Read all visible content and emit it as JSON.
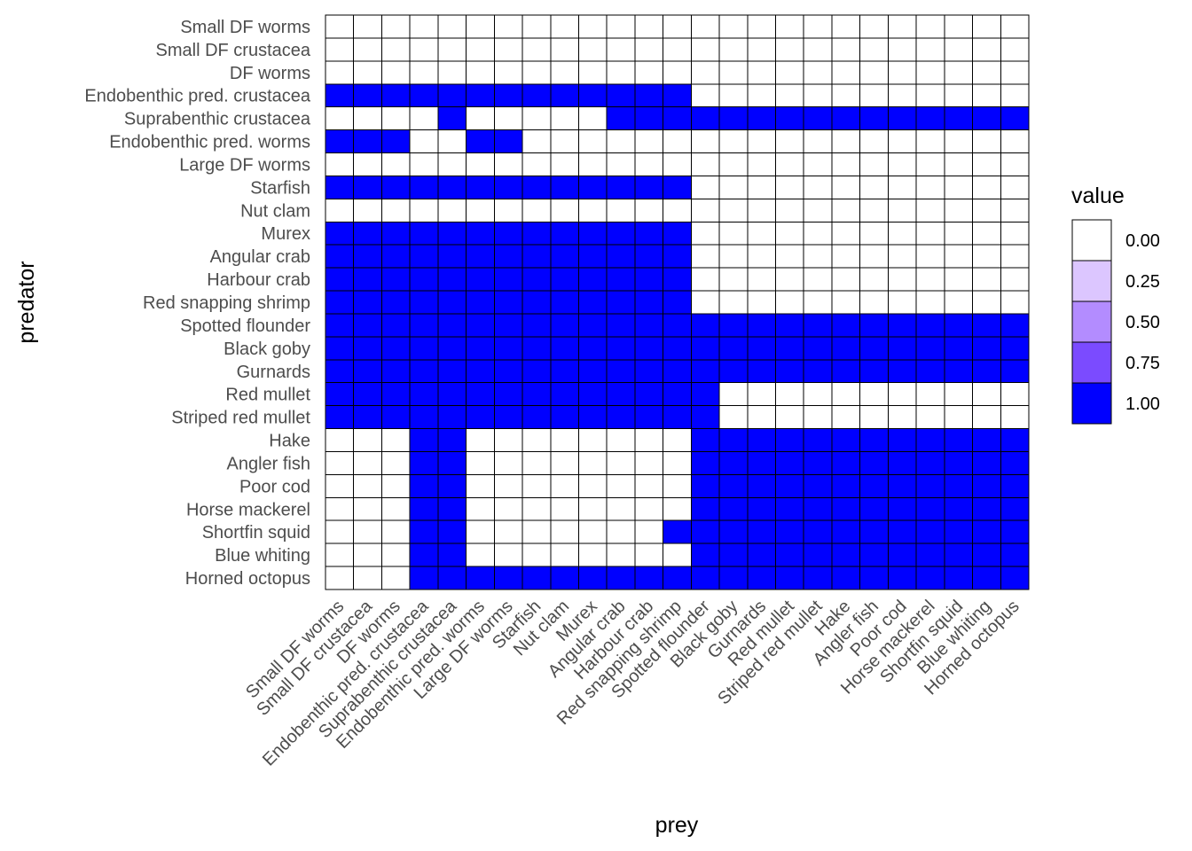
{
  "chart_data": {
    "type": "heatmap",
    "xlabel": "prey",
    "ylabel": "predator",
    "x_categories": [
      "Small DF worms",
      "Small DF crustacea",
      "DF worms",
      "Endobenthic pred. crustacea",
      "Suprabenthic crustacea",
      "Endobenthic pred. worms",
      "Large DF worms",
      "Starfish",
      "Nut clam",
      "Murex",
      "Angular crab",
      "Harbour crab",
      "Red snapping shrimp",
      "Spotted flounder",
      "Black goby",
      "Gurnards",
      "Red mullet",
      "Striped red mullet",
      "Hake",
      "Angler fish",
      "Poor cod",
      "Horse mackerel",
      "Shortfin squid",
      "Blue whiting",
      "Horned octopus"
    ],
    "y_categories": [
      "Small DF worms",
      "Small DF crustacea",
      "DF worms",
      "Endobenthic pred. crustacea",
      "Suprabenthic crustacea",
      "Endobenthic pred. worms",
      "Large DF worms",
      "Starfish",
      "Nut clam",
      "Murex",
      "Angular crab",
      "Harbour crab",
      "Red snapping shrimp",
      "Spotted flounder",
      "Black goby",
      "Gurnards",
      "Red mullet",
      "Striped red mullet",
      "Hake",
      "Angler fish",
      "Poor cod",
      "Horse mackerel",
      "Shortfin squid",
      "Blue whiting",
      "Horned octopus"
    ],
    "values": [
      "0000000000000000000000000",
      "0000000000000000000000000",
      "0000000000000000000000000",
      "1111111111111000000000000",
      "0000100000111111111111111",
      "1110011000000000000000000",
      "0000000000000000000000000",
      "1111111111111000000000000",
      "0000000000000000000000000",
      "1111111111111000000000000",
      "1111111111111000000000000",
      "1111111111111000000000000",
      "1111111111111000000000000",
      "1111111111111111111111111",
      "1111111111111111111111111",
      "1111111111111111111111111",
      "1111111111111100000000000",
      "1111111111111100000000000",
      "0001100000000111111111111",
      "0001100000000111111111111",
      "0001100000000111111111111",
      "0001100000000111111111111",
      "0001100000001111111111111",
      "0001100000000111111111111",
      "0001111111111111111111111"
    ],
    "legend": {
      "title": "value",
      "placement": "right",
      "breaks": [
        "0.00",
        "0.25",
        "0.50",
        "0.75",
        "1.00"
      ],
      "colors": [
        "#ffffff",
        "#dcc6ff",
        "#b38cff",
        "#7b4bff",
        "#0000ff"
      ]
    },
    "color_low": "#ffffff",
    "color_high": "#0000ff",
    "grid": false
  }
}
